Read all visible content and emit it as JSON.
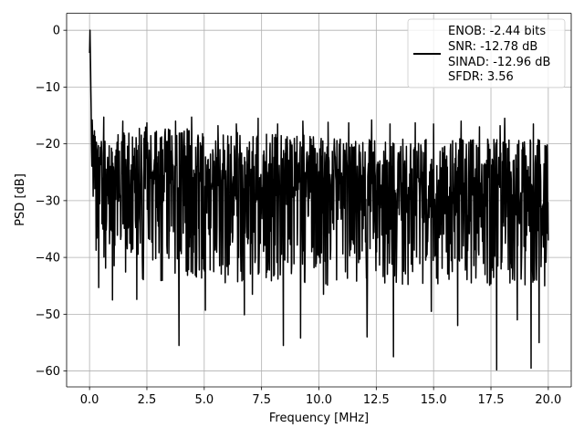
{
  "chart_data": {
    "type": "line",
    "title": "",
    "xlabel": "Frequency [MHz]",
    "ylabel": "PSD [dB]",
    "xlim": [
      -1.0,
      21.0
    ],
    "ylim": [
      -62.8,
      3.0
    ],
    "x_ticks": [
      0.0,
      2.5,
      5.0,
      7.5,
      10.0,
      12.5,
      15.0,
      17.5,
      20.0
    ],
    "x_tick_labels": [
      "0.0",
      "2.5",
      "5.0",
      "7.5",
      "10.0",
      "12.5",
      "15.0",
      "17.5",
      "20.0"
    ],
    "y_ticks": [
      0,
      -10,
      -20,
      -30,
      -40,
      -50,
      -60
    ],
    "y_tick_labels": [
      "0",
      "−10",
      "−20",
      "−30",
      "−40",
      "−50",
      "−60"
    ],
    "grid": true,
    "legend_position": "top-right",
    "legend_lines": [
      "ENOB: -2.44 bits",
      "SNR: -12.78 dB",
      "SINAD: -12.96 dB",
      "SFDR: 3.56"
    ],
    "line_color": "#000000",
    "series": [
      {
        "x": [
          0.0,
          0.02,
          0.05,
          0.08,
          0.1,
          0.15,
          0.2,
          0.3,
          0.5,
          1.0,
          2.0,
          3.0,
          4.0,
          5.0,
          6.0,
          7.0,
          8.0,
          9.0,
          10.0,
          11.0,
          12.0,
          13.0,
          14.0,
          15.0,
          16.0,
          17.0,
          18.0,
          19.0,
          20.0
        ],
        "y": [
          -4,
          0,
          -10,
          -15,
          -20,
          -22,
          -24,
          -25,
          -26,
          -26,
          -27,
          -27,
          -27,
          -27.5,
          -27.5,
          -27.5,
          -28,
          -28,
          -28,
          -28,
          -28,
          -28,
          -28.5,
          -28.5,
          -28.5,
          -28.5,
          -28.5,
          -28.5,
          -28.5
        ],
        "upper": [
          -4,
          0,
          -10,
          -12,
          -14,
          -16,
          -17,
          -18,
          -18,
          -18,
          -17,
          -17,
          -17,
          -18,
          -18,
          -18,
          -18,
          -18,
          -19,
          -19,
          -19,
          -19,
          -19,
          -19,
          -19,
          -19,
          -19,
          -19,
          -19
        ],
        "lower": [
          -4,
          -3,
          -18,
          -22,
          -26,
          -30,
          -35,
          -40,
          -42,
          -42,
          -44,
          -45,
          -45,
          -45,
          -45,
          -45,
          -45,
          -45,
          -45,
          -45,
          -45,
          -45,
          -45,
          -45,
          -45,
          -45,
          -45,
          -45,
          -45
        ],
        "dips": [
          [
            0.4,
            -45.3
          ],
          [
            1.0,
            -47.5
          ],
          [
            2.06,
            -47.4
          ],
          [
            3.9,
            -55.5
          ],
          [
            5.05,
            -49.3
          ],
          [
            6.75,
            -50.1
          ],
          [
            7.1,
            -46.5
          ],
          [
            8.45,
            -55.5
          ],
          [
            9.2,
            -54.2
          ],
          [
            10.2,
            -46.5
          ],
          [
            12.1,
            -54.0
          ],
          [
            13.25,
            -57.5
          ],
          [
            14.9,
            -49.5
          ],
          [
            16.05,
            -52.0
          ],
          [
            17.75,
            -59.8
          ],
          [
            18.65,
            -51.0
          ],
          [
            19.25,
            -59.5
          ],
          [
            19.6,
            -55.0
          ]
        ],
        "peaks": [
          [
            0.62,
            -15.3
          ],
          [
            1.45,
            -16.0
          ],
          [
            2.5,
            -16.3
          ],
          [
            3.75,
            -16.0
          ],
          [
            4.45,
            -15.3
          ],
          [
            5.6,
            -16.8
          ],
          [
            6.4,
            -16.5
          ],
          [
            7.35,
            -15.5
          ],
          [
            8.2,
            -16.5
          ],
          [
            9.3,
            -16.0
          ],
          [
            10.4,
            -16.2
          ],
          [
            11.3,
            -16.3
          ],
          [
            12.3,
            -15.8
          ],
          [
            13.1,
            -16.5
          ],
          [
            14.2,
            -16.3
          ],
          [
            15.0,
            -16.5
          ],
          [
            16.2,
            -16.0
          ],
          [
            17.0,
            -17.0
          ],
          [
            17.9,
            -16.8
          ],
          [
            18.1,
            -15.5
          ],
          [
            19.35,
            -16.5
          ],
          [
            19.95,
            -20.2
          ]
        ]
      }
    ]
  }
}
